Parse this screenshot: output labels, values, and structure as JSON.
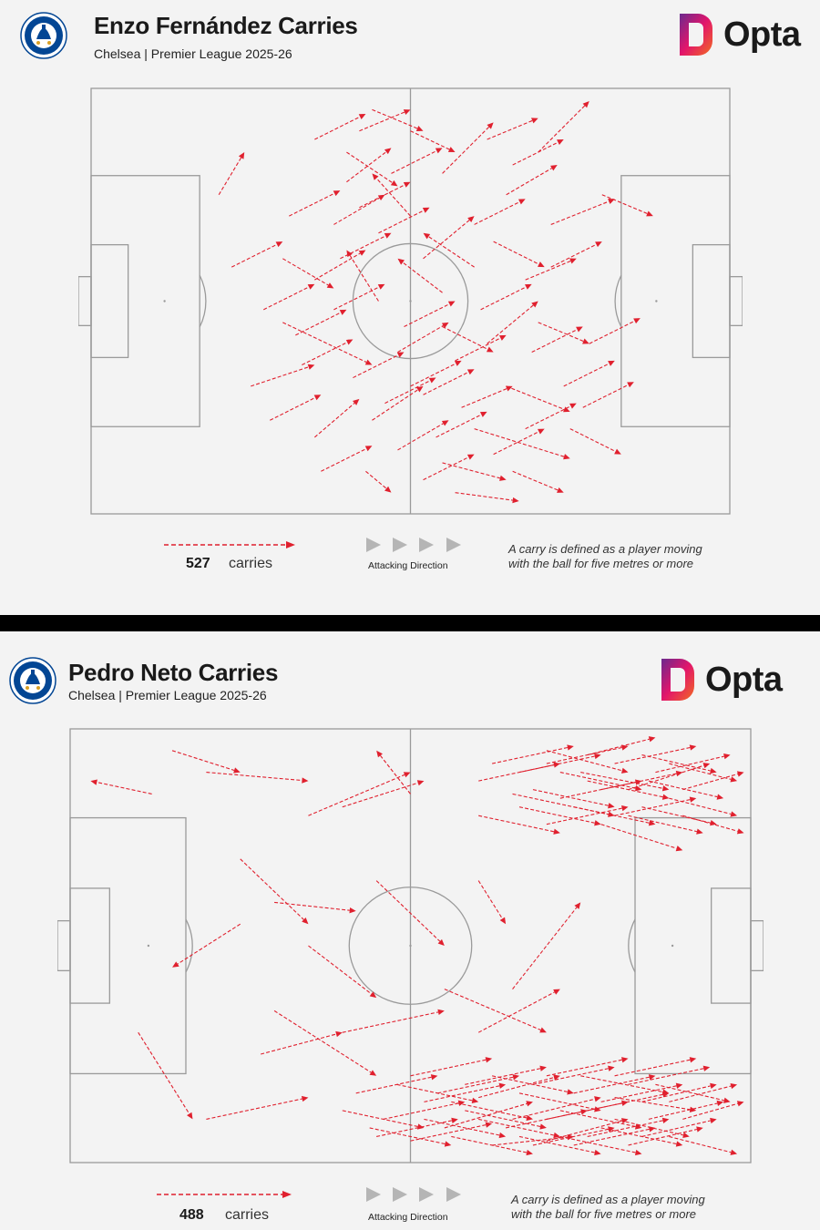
{
  "panels": [
    {
      "title": "Enzo Fernández Carries",
      "subtitle": "Chelsea | Premier League 2025-26",
      "logo_text": "Opta",
      "crest_icon": "chelsea-crest-icon",
      "carries_count": "527",
      "carries_label": "carries",
      "direction_label": "Attacking Direction",
      "note_lines": [
        "A carry is defined as a player moving",
        "with the ball for five metres or more"
      ]
    },
    {
      "title": "Pedro Neto Carries",
      "subtitle": "Chelsea | Premier League 2025-26",
      "logo_text": "Opta",
      "crest_icon": "chelsea-crest-icon",
      "carries_count": "488",
      "carries_label": "carries",
      "direction_label": "Attacking Direction",
      "note_lines": [
        "A carry is defined as a player moving",
        "with the ball for five metres or more"
      ]
    }
  ],
  "colors": {
    "carry": "#e0202e",
    "pitch_line": "#9a9a9a",
    "background": "#f3f3f3",
    "opta_gradient": [
      "#f26b21",
      "#e2156b",
      "#6b2a8e"
    ],
    "chelsea_blue": "#034694"
  },
  "chart_data": [
    {
      "type": "scatter",
      "subtype": "carry-arrows",
      "title": "Enzo Fernández Carries",
      "subtitle": "Chelsea | Premier League 2025-26",
      "xlim": [
        0,
        100
      ],
      "ylim": [
        0,
        100
      ],
      "attacking_direction": "left-to-right",
      "total_carries": 527,
      "carries": [
        [
          43,
          10,
          47,
          5
        ],
        [
          60,
          20,
          75,
          13
        ],
        [
          30,
          45,
          44,
          35
        ],
        [
          55,
          80,
          63,
          92
        ],
        [
          70,
          85,
          78,
          97
        ],
        [
          52,
          60,
          60,
          70
        ],
        [
          50,
          30,
          58,
          36
        ],
        [
          35,
          18,
          42,
          27
        ],
        [
          65,
          30,
          75,
          24
        ],
        [
          20,
          75,
          24,
          85
        ],
        [
          45,
          50,
          40,
          62
        ],
        [
          62,
          40,
          70,
          50
        ],
        [
          40,
          85,
          48,
          77
        ],
        [
          72,
          68,
          82,
          74
        ],
        [
          30,
          60,
          38,
          53
        ],
        [
          55,
          12,
          65,
          8
        ],
        [
          48,
          38,
          56,
          45
        ],
        [
          68,
          55,
          76,
          60
        ],
        [
          25,
          30,
          35,
          35
        ],
        [
          50,
          70,
          44,
          80
        ],
        [
          57,
          5,
          67,
          3
        ],
        [
          38,
          68,
          46,
          75
        ],
        [
          78,
          40,
          86,
          46
        ],
        [
          65,
          75,
          73,
          82
        ],
        [
          44,
          22,
          52,
          30
        ],
        [
          32,
          42,
          40,
          48
        ],
        [
          60,
          58,
          52,
          66
        ],
        [
          42,
          90,
          50,
          95
        ],
        [
          75,
          20,
          83,
          14
        ],
        [
          55,
          44,
          63,
          38
        ],
        [
          48,
          15,
          56,
          22
        ],
        [
          66,
          10,
          74,
          5
        ],
        [
          35,
          55,
          43,
          62
        ],
        [
          58,
          25,
          66,
          30
        ],
        [
          80,
          75,
          88,
          70
        ],
        [
          40,
          78,
          47,
          86
        ],
        [
          27,
          48,
          35,
          54
        ],
        [
          62,
          88,
          70,
          93
        ],
        [
          52,
          28,
          60,
          34
        ],
        [
          70,
          45,
          78,
          40
        ],
        [
          45,
          66,
          53,
          72
        ],
        [
          36,
          10,
          44,
          16
        ],
        [
          63,
          64,
          71,
          58
        ],
        [
          50,
          90,
          57,
          85
        ],
        [
          28,
          22,
          36,
          28
        ],
        [
          74,
          30,
          82,
          36
        ],
        [
          55,
          52,
          48,
          60
        ],
        [
          41,
          32,
          49,
          38
        ],
        [
          68,
          20,
          76,
          26
        ],
        [
          47,
          80,
          55,
          86
        ],
        [
          33,
          35,
          41,
          41
        ],
        [
          61,
          48,
          69,
          54
        ],
        [
          52,
          8,
          60,
          14
        ],
        [
          39,
          60,
          47,
          66
        ],
        [
          72,
          58,
          80,
          64
        ],
        [
          44,
          95,
          52,
          90
        ],
        [
          57,
          36,
          65,
          42
        ],
        [
          31,
          70,
          39,
          76
        ],
        [
          66,
          82,
          74,
          88
        ],
        [
          49,
          44,
          57,
          50
        ],
        [
          22,
          58,
          30,
          64
        ],
        [
          77,
          25,
          85,
          31
        ],
        [
          46,
          26,
          54,
          32
        ],
        [
          60,
          68,
          68,
          74
        ],
        [
          38,
          48,
          46,
          54
        ],
        [
          54,
          18,
          62,
          24
        ],
        [
          69,
          38,
          77,
          44
        ],
        [
          42,
          72,
          50,
          78
        ],
        [
          35,
          88,
          43,
          94
        ],
        [
          63,
          14,
          71,
          20
        ]
      ]
    },
    {
      "type": "scatter",
      "subtype": "carry-arrows",
      "title": "Pedro Neto Carries",
      "subtitle": "Chelsea | Premier League 2025-26",
      "xlim": [
        0,
        100
      ],
      "ylim": [
        0,
        100
      ],
      "attacking_direction": "left-to-right",
      "total_carries": 488,
      "carries": [
        [
          65,
          85,
          80,
          80
        ],
        [
          75,
          90,
          88,
          86
        ],
        [
          80,
          80,
          92,
          84
        ],
        [
          70,
          95,
          82,
          90
        ],
        [
          85,
          88,
          96,
          84
        ],
        [
          60,
          80,
          72,
          76
        ],
        [
          78,
          78,
          90,
          72
        ],
        [
          88,
          92,
          98,
          88
        ],
        [
          72,
          84,
          84,
          88
        ],
        [
          82,
          86,
          94,
          92
        ],
        [
          66,
          90,
          78,
          94
        ],
        [
          90,
          80,
          99,
          76
        ],
        [
          76,
          94,
          86,
          98
        ],
        [
          84,
          82,
          95,
          78
        ],
        [
          70,
          78,
          82,
          82
        ],
        [
          62,
          92,
          74,
          96
        ],
        [
          86,
          90,
          97,
          94
        ],
        [
          74,
          82,
          86,
          78
        ],
        [
          80,
          92,
          92,
          96
        ],
        [
          68,
          86,
          80,
          82
        ],
        [
          88,
          84,
          98,
          80
        ],
        [
          72,
          90,
          84,
          86
        ],
        [
          60,
          88,
          72,
          92
        ],
        [
          78,
          86,
          90,
          90
        ],
        [
          84,
          94,
          95,
          90
        ],
        [
          66,
          82,
          78,
          78
        ],
        [
          82,
          80,
          93,
          76
        ],
        [
          76,
          88,
          88,
          84
        ],
        [
          90,
          86,
          99,
          90
        ],
        [
          70,
          92,
          82,
          96
        ],
        [
          65,
          10,
          78,
          15
        ],
        [
          70,
          5,
          82,
          10
        ],
        [
          80,
          15,
          92,
          12
        ],
        [
          55,
          8,
          68,
          14
        ],
        [
          75,
          20,
          88,
          16
        ],
        [
          40,
          12,
          52,
          8
        ],
        [
          60,
          15,
          72,
          20
        ],
        [
          85,
          10,
          96,
          14
        ],
        [
          50,
          5,
          62,
          9
        ],
        [
          78,
          8,
          90,
          4
        ],
        [
          68,
          18,
          80,
          22
        ],
        [
          58,
          12,
          70,
          8
        ],
        [
          82,
          18,
          94,
          22
        ],
        [
          45,
          6,
          57,
          10
        ],
        [
          72,
          12,
          84,
          8
        ],
        [
          62,
          4,
          74,
          6
        ],
        [
          88,
          14,
          98,
          18
        ],
        [
          52,
          14,
          64,
          18
        ],
        [
          76,
          6,
          88,
          10
        ],
        [
          66,
          16,
          78,
          12
        ],
        [
          48,
          18,
          60,
          14
        ],
        [
          84,
          6,
          95,
          10
        ],
        [
          70,
          20,
          82,
          24
        ],
        [
          56,
          6,
          68,
          2
        ],
        [
          80,
          10,
          91,
          6
        ],
        [
          64,
          8,
          76,
          12
        ],
        [
          74,
          16,
          86,
          20
        ],
        [
          42,
          16,
          54,
          20
        ],
        [
          86,
          18,
          97,
          14
        ],
        [
          60,
          10,
          72,
          6
        ],
        [
          54,
          16,
          66,
          20
        ],
        [
          90,
          10,
          99,
          14
        ],
        [
          68,
          4,
          80,
          8
        ],
        [
          78,
          14,
          90,
          18
        ],
        [
          46,
          10,
          58,
          14
        ],
        [
          50,
          20,
          62,
          24
        ],
        [
          82,
          4,
          93,
          8
        ],
        [
          58,
          18,
          70,
          22
        ],
        [
          72,
          6,
          84,
          2
        ],
        [
          88,
          6,
          98,
          2
        ],
        [
          62,
          20,
          74,
          16
        ],
        [
          76,
          12,
          88,
          16
        ],
        [
          44,
          8,
          56,
          4
        ],
        [
          66,
          6,
          78,
          2
        ],
        [
          84,
          14,
          95,
          18
        ],
        [
          70,
          10,
          82,
          14
        ],
        [
          52,
          10,
          64,
          6
        ],
        [
          80,
          20,
          92,
          24
        ],
        [
          56,
          14,
          68,
          10
        ],
        [
          74,
          4,
          86,
          8
        ],
        [
          30,
          35,
          45,
          20
        ],
        [
          40,
          30,
          55,
          35
        ],
        [
          20,
          10,
          35,
          15
        ],
        [
          55,
          40,
          70,
          30
        ],
        [
          35,
          80,
          50,
          90
        ],
        [
          15,
          95,
          25,
          90
        ],
        [
          10,
          30,
          18,
          10
        ],
        [
          25,
          70,
          35,
          55
        ],
        [
          45,
          65,
          55,
          50
        ],
        [
          60,
          30,
          72,
          40
        ],
        [
          12,
          85,
          3,
          88
        ],
        [
          20,
          90,
          35,
          88
        ],
        [
          40,
          82,
          52,
          88
        ],
        [
          30,
          60,
          42,
          58
        ],
        [
          35,
          50,
          45,
          38
        ],
        [
          60,
          65,
          64,
          55
        ],
        [
          50,
          85,
          45,
          95
        ],
        [
          28,
          25,
          40,
          30
        ],
        [
          65,
          40,
          75,
          60
        ],
        [
          25,
          55,
          15,
          45
        ]
      ]
    }
  ]
}
